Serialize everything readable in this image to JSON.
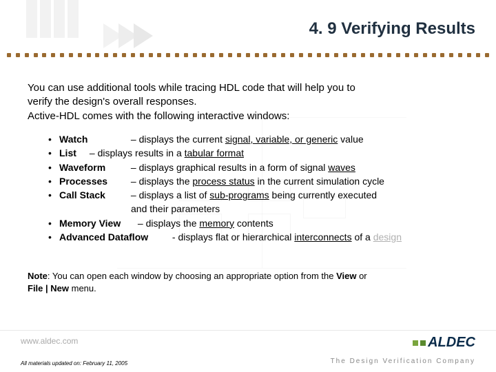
{
  "title": "4. 9 Verifying Results",
  "intro_line1": "You can use additional tools while tracing HDL code that will help you to",
  "intro_line2": "verify the design's overall responses.",
  "intro_line3": "Active-HDL comes with the following interactive windows:",
  "items": [
    {
      "label": "Watch",
      "pre": " – displays the current ",
      "u": "signal, variable, or generic",
      "post": " value"
    },
    {
      "label": "List",
      "pre": " – displays results in a ",
      "u": "tabular format",
      "post": ""
    },
    {
      "label": "Waveform",
      "pre": " – displays graphical results in a form of signal ",
      "u": "waves",
      "post": ""
    },
    {
      "label": "Processes",
      "pre": " – displays the ",
      "u": "process status",
      "post": " in the current simulation cycle"
    },
    {
      "label": "Call Stack",
      "pre": " – displays a list of ",
      "u": "sub-programs",
      "post": " being currently executed"
    }
  ],
  "callstack_cont": "and their parameters",
  "item_mem": {
    "label": "Memory View",
    "pre": " – displays the ",
    "u": "memory",
    "post": " contents"
  },
  "item_adf": {
    "label": "Advanced Dataflow",
    "pre": " - displays flat or hierarchical ",
    "u": "interconnects",
    "mid": " of a ",
    "u2": "design"
  },
  "note_bold": "Note",
  "note_rest1": ": You can open each window by choosing an appropriate option from the ",
  "note_b2": "View",
  "note_rest2": " or ",
  "note_b3": "File | New",
  "note_rest3": " menu.",
  "footer_url": "www.aldec.com",
  "footer_copy": "All materials updated on: February 11, 2005",
  "footer_tagline": "The Design Verification Company",
  "logo_text": "LDEC",
  "colors": {
    "title": "#203040",
    "dot": "#9a6a30",
    "footer_gray": "#aaaaaa",
    "link_gray": "#b0b0b0"
  }
}
